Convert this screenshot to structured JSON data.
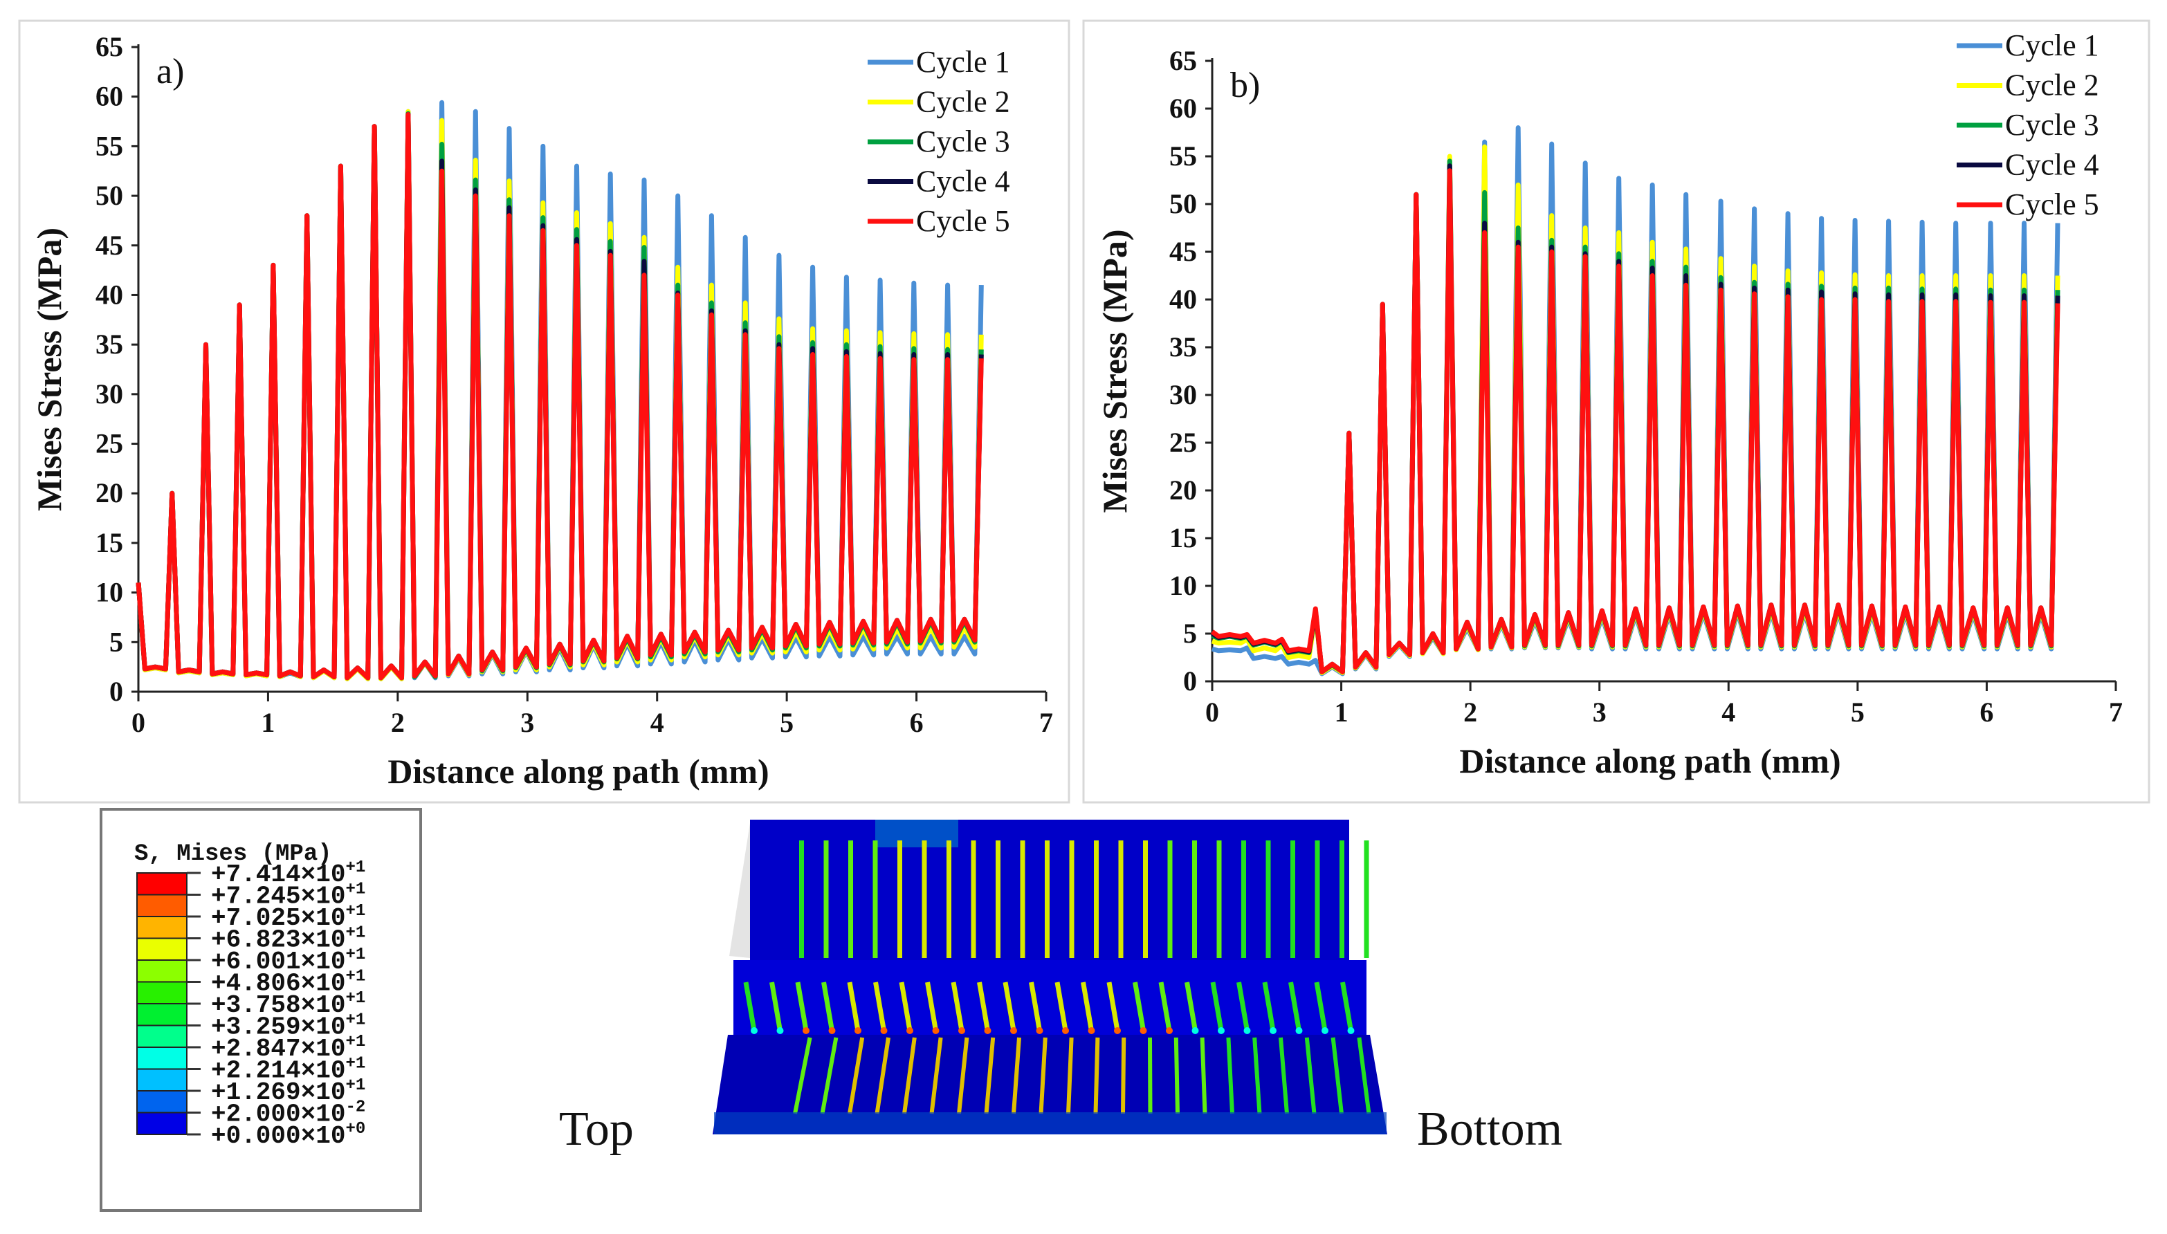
{
  "chart_data": [
    {
      "type": "line",
      "panel_label": "a)",
      "xlabel": "Distance along path (mm)",
      "ylabel": "Mises Stress (MPa)",
      "xlim": [
        0,
        7
      ],
      "ylim": [
        0,
        65
      ],
      "xticks": [
        "0",
        "1",
        "2",
        "3",
        "4",
        "5",
        "6",
        "7"
      ],
      "yticks": [
        "0",
        "5",
        "10",
        "15",
        "20",
        "25",
        "30",
        "35",
        "40",
        "45",
        "50",
        "55",
        "60",
        "65"
      ],
      "legend_position": "top-right",
      "start_value": 11,
      "peak_x": [
        0.26,
        0.52,
        0.78,
        1.04,
        1.3,
        1.56,
        1.82,
        2.08,
        2.34,
        2.6,
        2.86,
        3.12,
        3.38,
        3.64,
        3.9,
        4.16,
        4.42,
        4.68,
        4.94,
        5.2,
        5.46,
        5.72,
        5.98,
        6.24,
        6.5
      ],
      "series": [
        {
          "name": "Cycle 1",
          "color": "#4a8fd6",
          "peaks": [
            20,
            35,
            39,
            43,
            48,
            53,
            57,
            58.5,
            59.4,
            58.5,
            56.8,
            55,
            53,
            52.2,
            51.6,
            50,
            48,
            45.8,
            44,
            42.8,
            41.8,
            41.5,
            41.2,
            41,
            41
          ],
          "valleys": [
            2.2,
            1.9,
            1.7,
            1.6,
            1.5,
            1.4,
            1.3,
            1.3,
            1.4,
            1.6,
            1.8,
            2.0,
            2.2,
            2.4,
            2.6,
            2.8,
            3.0,
            3.2,
            3.4,
            3.5,
            3.6,
            3.7,
            3.8,
            3.8,
            3.8
          ],
          "bumps": [
            2.4,
            2.1,
            1.9,
            1.8,
            1.9,
            2.1,
            2.3,
            2.5,
            2.9,
            3.4,
            3.8,
            4.1,
            4.4,
            4.7,
            4.9,
            5.0,
            5.2,
            5.3,
            5.4,
            5.5,
            5.6,
            5.6,
            5.6,
            5.6,
            5.6
          ]
        },
        {
          "name": "Cycle 2",
          "color": "#ffff00",
          "peaks": [
            20,
            35,
            39,
            43,
            48,
            53,
            57,
            58.5,
            57.6,
            53.6,
            51.5,
            49.3,
            48.3,
            47.2,
            45.8,
            42.8,
            41,
            39.2,
            37.6,
            36.6,
            36.4,
            36.2,
            36.1,
            36,
            36
          ],
          "valleys": [
            2.2,
            1.9,
            1.7,
            1.6,
            1.5,
            1.4,
            1.3,
            1.3,
            1.5,
            1.7,
            2.0,
            2.2,
            2.5,
            2.7,
            3.0,
            3.2,
            3.5,
            3.7,
            3.9,
            4.0,
            4.2,
            4.3,
            4.4,
            4.4,
            4.5
          ],
          "bumps": [
            2.4,
            2.1,
            1.9,
            1.8,
            2.0,
            2.1,
            2.3,
            2.5,
            2.9,
            3.5,
            3.9,
            4.2,
            4.6,
            4.9,
            5.2,
            5.4,
            5.6,
            5.7,
            5.9,
            6.1,
            6.3,
            6.4,
            6.4,
            6.5,
            6.5
          ]
        },
        {
          "name": "Cycle 3",
          "color": "#00a040",
          "peaks": [
            20,
            35,
            39,
            43,
            48,
            53,
            57,
            58.3,
            55.2,
            51.6,
            49.6,
            47.8,
            46.6,
            45.4,
            44.8,
            41,
            39.2,
            37.2,
            35.8,
            35.2,
            35,
            34.8,
            34.6,
            34.5,
            34.5
          ],
          "valleys": [
            2.3,
            2.0,
            1.8,
            1.7,
            1.6,
            1.5,
            1.4,
            1.4,
            1.5,
            1.8,
            2.1,
            2.4,
            2.7,
            3.0,
            3.3,
            3.5,
            3.8,
            4.0,
            4.2,
            4.4,
            4.6,
            4.7,
            4.8,
            4.9,
            5.0
          ],
          "bumps": [
            2.5,
            2.2,
            2.0,
            1.9,
            2.0,
            2.2,
            2.4,
            2.6,
            3.0,
            3.6,
            4.0,
            4.3,
            4.7,
            5.1,
            5.4,
            5.6,
            5.8,
            6.0,
            6.3,
            6.6,
            6.8,
            6.9,
            7.0,
            7.1,
            7.1
          ]
        },
        {
          "name": "Cycle 4",
          "color": "#0a0a40",
          "peaks": [
            20,
            35,
            39,
            43,
            48,
            53,
            57,
            58.2,
            53.5,
            50.6,
            48.8,
            47,
            45.6,
            44.4,
            43.4,
            40.2,
            38.4,
            36.4,
            35,
            34.6,
            34.3,
            34.1,
            34,
            34,
            34
          ],
          "valleys": [
            2.3,
            2.0,
            1.8,
            1.7,
            1.6,
            1.5,
            1.4,
            1.4,
            1.6,
            1.8,
            2.2,
            2.5,
            2.8,
            3.1,
            3.4,
            3.7,
            4.0,
            4.2,
            4.4,
            4.6,
            4.8,
            4.9,
            5.0,
            5.1,
            5.2
          ],
          "bumps": [
            2.5,
            2.2,
            2.0,
            1.9,
            2.0,
            2.2,
            2.4,
            2.6,
            3.0,
            3.6,
            4.0,
            4.4,
            4.8,
            5.2,
            5.6,
            5.8,
            6.0,
            6.2,
            6.5,
            6.8,
            7.0,
            7.1,
            7.2,
            7.3,
            7.3
          ]
        },
        {
          "name": "Cycle 5",
          "color": "#ff1010",
          "peaks": [
            20,
            35,
            39,
            43,
            48,
            53,
            57,
            58.2,
            52.5,
            50,
            48,
            46.5,
            45,
            44,
            42,
            40,
            38,
            36,
            34.6,
            34,
            33.8,
            33.6,
            33.5,
            33.5,
            33.6
          ],
          "valleys": [
            2.3,
            2.0,
            1.8,
            1.7,
            1.6,
            1.5,
            1.4,
            1.4,
            1.6,
            1.8,
            2.2,
            2.5,
            2.8,
            3.1,
            3.4,
            3.7,
            4.0,
            4.2,
            4.4,
            4.6,
            4.8,
            4.9,
            5.0,
            5.1,
            5.2
          ],
          "bumps": [
            2.5,
            2.2,
            2.0,
            1.9,
            2.0,
            2.2,
            2.4,
            2.6,
            3.0,
            3.6,
            4.0,
            4.4,
            4.8,
            5.2,
            5.6,
            5.8,
            6.0,
            6.2,
            6.5,
            6.8,
            7.0,
            7.1,
            7.2,
            7.3,
            7.3
          ]
        }
      ]
    },
    {
      "type": "line",
      "panel_label": "b)",
      "xlabel": "Distance along path (mm)",
      "ylabel": "Mises Stress (MPa)",
      "xlim": [
        0,
        7
      ],
      "ylim": [
        0,
        65
      ],
      "xticks": [
        "0",
        "1",
        "2",
        "3",
        "4",
        "5",
        "6",
        "7"
      ],
      "yticks": [
        "0",
        "5",
        "10",
        "15",
        "20",
        "25",
        "30",
        "35",
        "40",
        "45",
        "50",
        "55",
        "60",
        "65"
      ],
      "legend_position": "top-right",
      "peak_x": [
        0.27,
        0.54,
        0.8,
        1.06,
        1.32,
        1.58,
        1.84,
        2.11,
        2.37,
        2.63,
        2.89,
        3.15,
        3.41,
        3.67,
        3.94,
        4.2,
        4.46,
        4.72,
        4.98,
        5.24,
        5.5,
        5.76,
        6.03,
        6.29,
        6.55
      ],
      "series": [
        {
          "name": "Cycle 1",
          "color": "#4a8fd6",
          "start_value": 3.4,
          "peaks": [
            3.5,
            2.6,
            2.2,
            26,
            39.5,
            51,
            54.5,
            56.5,
            58,
            56.3,
            54.3,
            52.7,
            52,
            51,
            50.3,
            49.5,
            49,
            48.5,
            48.3,
            48.2,
            48.1,
            48,
            48,
            48,
            48
          ],
          "valleys": [
            3.2,
            2.4,
            1.8,
            0.8,
            1.3,
            2.6,
            2.9,
            3.3,
            3.4,
            3.5,
            3.5,
            3.4,
            3.4,
            3.4,
            3.4,
            3.4,
            3.4,
            3.4,
            3.4,
            3.4,
            3.4,
            3.4,
            3.4,
            3.4,
            3.4
          ],
          "bumps": [
            3.3,
            2.6,
            2.0,
            1.5,
            2.8,
            3.8,
            4.6,
            5.6,
            6.0,
            6.4,
            6.6,
            6.8,
            7.0,
            7.1,
            7.2,
            7.3,
            7.3,
            7.3,
            7.3,
            7.2,
            7.2,
            7.2,
            7.1,
            7.1,
            7.1
          ]
        },
        {
          "name": "Cycle 2",
          "color": "#ffff00",
          "start_value": 4.2,
          "peaks": [
            4.4,
            3.8,
            7.0,
            26,
            39.5,
            51,
            55,
            56,
            52,
            48.8,
            47.5,
            47,
            46,
            45.3,
            44.3,
            43.5,
            43,
            42.8,
            42.6,
            42.5,
            42.5,
            42.5,
            42.5,
            42.5,
            42.5
          ],
          "valleys": [
            4.0,
            3.2,
            2.5,
            0.9,
            1.4,
            2.7,
            2.9,
            3.3,
            3.5,
            3.6,
            3.6,
            3.6,
            3.6,
            3.6,
            3.6,
            3.6,
            3.6,
            3.6,
            3.6,
            3.6,
            3.6,
            3.6,
            3.6,
            3.6,
            3.6
          ],
          "bumps": [
            4.1,
            3.5,
            2.7,
            1.6,
            2.9,
            3.9,
            4.8,
            5.9,
            6.2,
            6.7,
            6.9,
            7.1,
            7.3,
            7.4,
            7.5,
            7.6,
            7.6,
            7.6,
            7.6,
            7.5,
            7.5,
            7.5,
            7.4,
            7.4,
            7.4
          ]
        },
        {
          "name": "Cycle 3",
          "color": "#00a040",
          "start_value": 4.8,
          "peaks": [
            4.7,
            4.2,
            7.3,
            26,
            39.5,
            51,
            54.5,
            51.2,
            47.5,
            46.2,
            45.5,
            44.8,
            44,
            43.4,
            42.3,
            41.8,
            41.6,
            41.4,
            41.2,
            41.2,
            41.1,
            41.1,
            41,
            41,
            41
          ],
          "valleys": [
            4.5,
            3.8,
            3.0,
            1.0,
            1.5,
            2.8,
            3.0,
            3.4,
            3.6,
            3.7,
            3.7,
            3.7,
            3.7,
            3.7,
            3.7,
            3.7,
            3.7,
            3.7,
            3.7,
            3.7,
            3.7,
            3.7,
            3.7,
            3.7,
            3.7
          ],
          "bumps": [
            4.7,
            4.1,
            3.2,
            1.7,
            3.0,
            4.0,
            4.9,
            6.1,
            6.4,
            6.9,
            7.1,
            7.3,
            7.5,
            7.6,
            7.7,
            7.8,
            7.9,
            7.9,
            7.9,
            7.8,
            7.7,
            7.7,
            7.6,
            7.6,
            7.6
          ]
        },
        {
          "name": "Cycle 4",
          "color": "#0a0a40",
          "start_value": 5.0,
          "peaks": [
            4.8,
            4.3,
            7.4,
            26,
            39.5,
            51,
            54,
            48,
            46,
            45.5,
            44.8,
            44,
            43.3,
            42.5,
            41.6,
            41.2,
            41,
            40.8,
            40.6,
            40.5,
            40.5,
            40.5,
            40.4,
            40.4,
            40.4
          ],
          "valleys": [
            4.6,
            3.9,
            3.1,
            1.0,
            1.5,
            2.8,
            3.0,
            3.4,
            3.6,
            3.8,
            3.8,
            3.8,
            3.8,
            3.8,
            3.8,
            3.8,
            3.8,
            3.8,
            3.8,
            3.8,
            3.8,
            3.8,
            3.8,
            3.8,
            3.8
          ],
          "bumps": [
            4.8,
            4.2,
            3.3,
            1.8,
            3.0,
            4.0,
            5.0,
            6.2,
            6.5,
            7.0,
            7.2,
            7.4,
            7.6,
            7.7,
            7.8,
            7.9,
            8.0,
            8.0,
            8.0,
            7.9,
            7.8,
            7.8,
            7.7,
            7.7,
            7.7
          ]
        },
        {
          "name": "Cycle 5",
          "color": "#ff1010",
          "start_value": 5.2,
          "peaks": [
            4.9,
            4.4,
            7.6,
            26,
            39.5,
            51,
            53.5,
            47,
            45.5,
            45,
            44.5,
            43.5,
            42.5,
            41.5,
            41,
            40.6,
            40.3,
            40,
            40,
            39.8,
            39.8,
            39.8,
            39.7,
            39.7,
            39.6
          ],
          "valleys": [
            4.7,
            4.0,
            3.2,
            1.0,
            1.5,
            2.8,
            3.0,
            3.4,
            3.6,
            3.8,
            3.8,
            3.8,
            3.8,
            3.8,
            3.8,
            3.8,
            3.8,
            3.8,
            3.8,
            3.8,
            3.8,
            3.8,
            3.8,
            3.8,
            3.8
          ],
          "bumps": [
            4.9,
            4.3,
            3.4,
            1.8,
            3.0,
            4.0,
            5.0,
            6.2,
            6.5,
            7.0,
            7.2,
            7.4,
            7.6,
            7.7,
            7.8,
            7.9,
            8.0,
            8.0,
            8.0,
            7.9,
            7.8,
            7.8,
            7.7,
            7.7,
            7.7
          ]
        }
      ]
    }
  ],
  "contour_legend": {
    "title": "S, Mises (MPa)",
    "entries": [
      {
        "mantissa": "+7.414×10",
        "exp": "+1",
        "color": "#ff0000"
      },
      {
        "mantissa": "+7.245×10",
        "exp": "+1",
        "color": "#ff5c00"
      },
      {
        "mantissa": "+7.025×10",
        "exp": "+1",
        "color": "#ffb400"
      },
      {
        "mantissa": "+6.823×10",
        "exp": "+1",
        "color": "#eaff00"
      },
      {
        "mantissa": "+6.001×10",
        "exp": "+1",
        "color": "#8cff00"
      },
      {
        "mantissa": "+4.806×10",
        "exp": "+1",
        "color": "#28f000"
      },
      {
        "mantissa": "+3.758×10",
        "exp": "+1",
        "color": "#00f030"
      },
      {
        "mantissa": "+3.259×10",
        "exp": "+1",
        "color": "#00ff8c"
      },
      {
        "mantissa": "+2.847×10",
        "exp": "+1",
        "color": "#00ffe6"
      },
      {
        "mantissa": "+2.214×10",
        "exp": "+1",
        "color": "#00c0ff"
      },
      {
        "mantissa": "+1.269×10",
        "exp": "+1",
        "color": "#0064ee"
      },
      {
        "mantissa": "+2.000×10",
        "exp": "-2",
        "color": "#0000e6"
      },
      {
        "mantissa": "+0.000×10",
        "exp": "+0",
        "color": null
      }
    ]
  },
  "model": {
    "left_label": "Top",
    "right_label": "Bottom"
  }
}
